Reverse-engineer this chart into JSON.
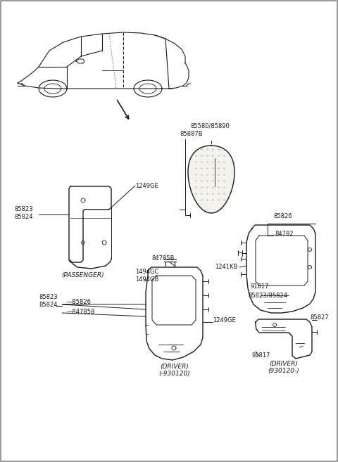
{
  "bg_color": "#ffffff",
  "line_color": "#1a1a1a",
  "text_color": "#1a1a1a",
  "figsize": [
    4.8,
    6.57
  ],
  "dpi": 100,
  "labels": {
    "passenger_label": "(PASSENGER)",
    "driver1_label": "(DRIVER)\n(-930120)",
    "driver2_label": "(DRIVER)\n(930120-)",
    "p85580_85890": "85580/85890",
    "p85887B": "85887B",
    "p1249GE_top": "1249GE",
    "p85823_top": "85823\n85824",
    "p84785B": "84785B",
    "p1494GC": "1494GC\n1494GB",
    "p1241KB": "1241KB",
    "p84782": "84782",
    "p85826_top": "85826",
    "p1249GE_mid": "1249GE",
    "p91817_mid": "91817",
    "p85823_85824_mid": "85823/85824",
    "p85823_left": "85823\n85824",
    "p85826_left": "—85826",
    "p84785B_left": "—847858",
    "p85827": "85827",
    "p91817_bot": "91817"
  }
}
